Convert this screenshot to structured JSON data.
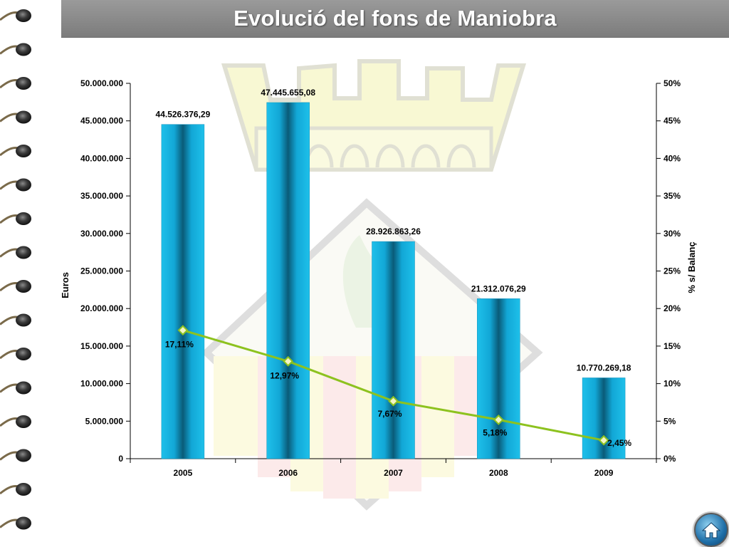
{
  "title": "Evolució del fons de Maniobra",
  "icons": {
    "home": "home-icon",
    "binding": "spiral-binding"
  },
  "colors": {
    "bar": "#1ab4e2",
    "bar_dark": "#0b5f7c",
    "line": "#8dc21f",
    "marker_fill": "#f2f5c8",
    "title_bar": "#8a8a8a"
  },
  "chart_data": {
    "type": "bar",
    "categories": [
      "2005",
      "2006",
      "2007",
      "2008",
      "2009"
    ],
    "series": [
      {
        "type": "bar",
        "axis": "left",
        "values": [
          44526376.29,
          47445655.08,
          28926863.26,
          21312076.29,
          10770269.18
        ],
        "labels": [
          "44.526.376,29",
          "47.445.655,08",
          "28.926.863,26",
          "21.312.076,29",
          "10.770.269,18"
        ]
      },
      {
        "type": "line",
        "axis": "right",
        "values": [
          17.11,
          12.97,
          7.67,
          5.18,
          2.45
        ],
        "labels": [
          "17,11%",
          "12,97%",
          "7,67%",
          "5,18%",
          "2,45%"
        ]
      }
    ],
    "ylabel": "Euros",
    "ylabel_right": "% s/ Balanç",
    "ylim": [
      0,
      50000000
    ],
    "ylim_right": [
      0,
      50
    ],
    "yticks": [
      "0",
      "5.000.000",
      "10.000.000",
      "15.000.000",
      "20.000.000",
      "25.000.000",
      "30.000.000",
      "35.000.000",
      "40.000.000",
      "45.000.000",
      "50.000.000"
    ],
    "yticks_right": [
      "0%",
      "5%",
      "10%",
      "15%",
      "20%",
      "25%",
      "30%",
      "35%",
      "40%",
      "45%",
      "50%"
    ],
    "grid": false,
    "legend": "none"
  }
}
